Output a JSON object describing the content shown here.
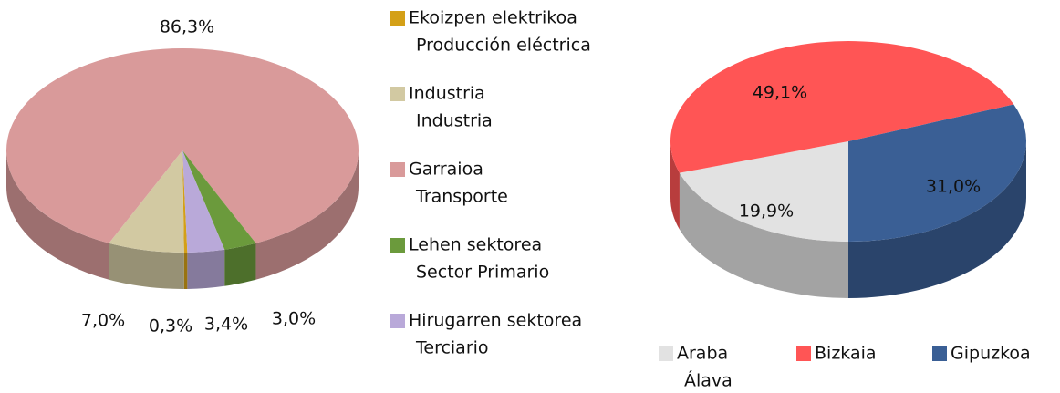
{
  "chart_data": [
    {
      "type": "pie",
      "categories": [
        [
          "Ekoizpen elektrikoa",
          "Producción eléctrica"
        ],
        [
          "Industria",
          "Industria"
        ],
        [
          "Garraioa",
          "Transporte"
        ],
        [
          "Lehen sektorea",
          "Sector Primario"
        ],
        [
          "Hirugarren sektorea",
          "Terciario"
        ]
      ],
      "values": [
        0.3,
        7.0,
        86.3,
        3.0,
        3.4
      ],
      "value_labels": [
        "0,3%",
        "7,0%",
        "86,3%",
        "3,0%",
        "3,4%"
      ],
      "colors": [
        "#d4a017",
        "#d2c9a2",
        "#d99a9a",
        "#6b9a3c",
        "#b9a9d9"
      ]
    },
    {
      "type": "pie",
      "categories": [
        [
          "Araba",
          "Álava"
        ],
        [
          "Bizkaia"
        ],
        [
          "Gipuzkoa"
        ]
      ],
      "values": [
        19.9,
        49.1,
        31.0
      ],
      "value_labels": [
        "19,9%",
        "49,1%",
        "31,0%"
      ],
      "colors": [
        "#e2e2e2",
        "#ff5555",
        "#3a5f95"
      ]
    }
  ]
}
